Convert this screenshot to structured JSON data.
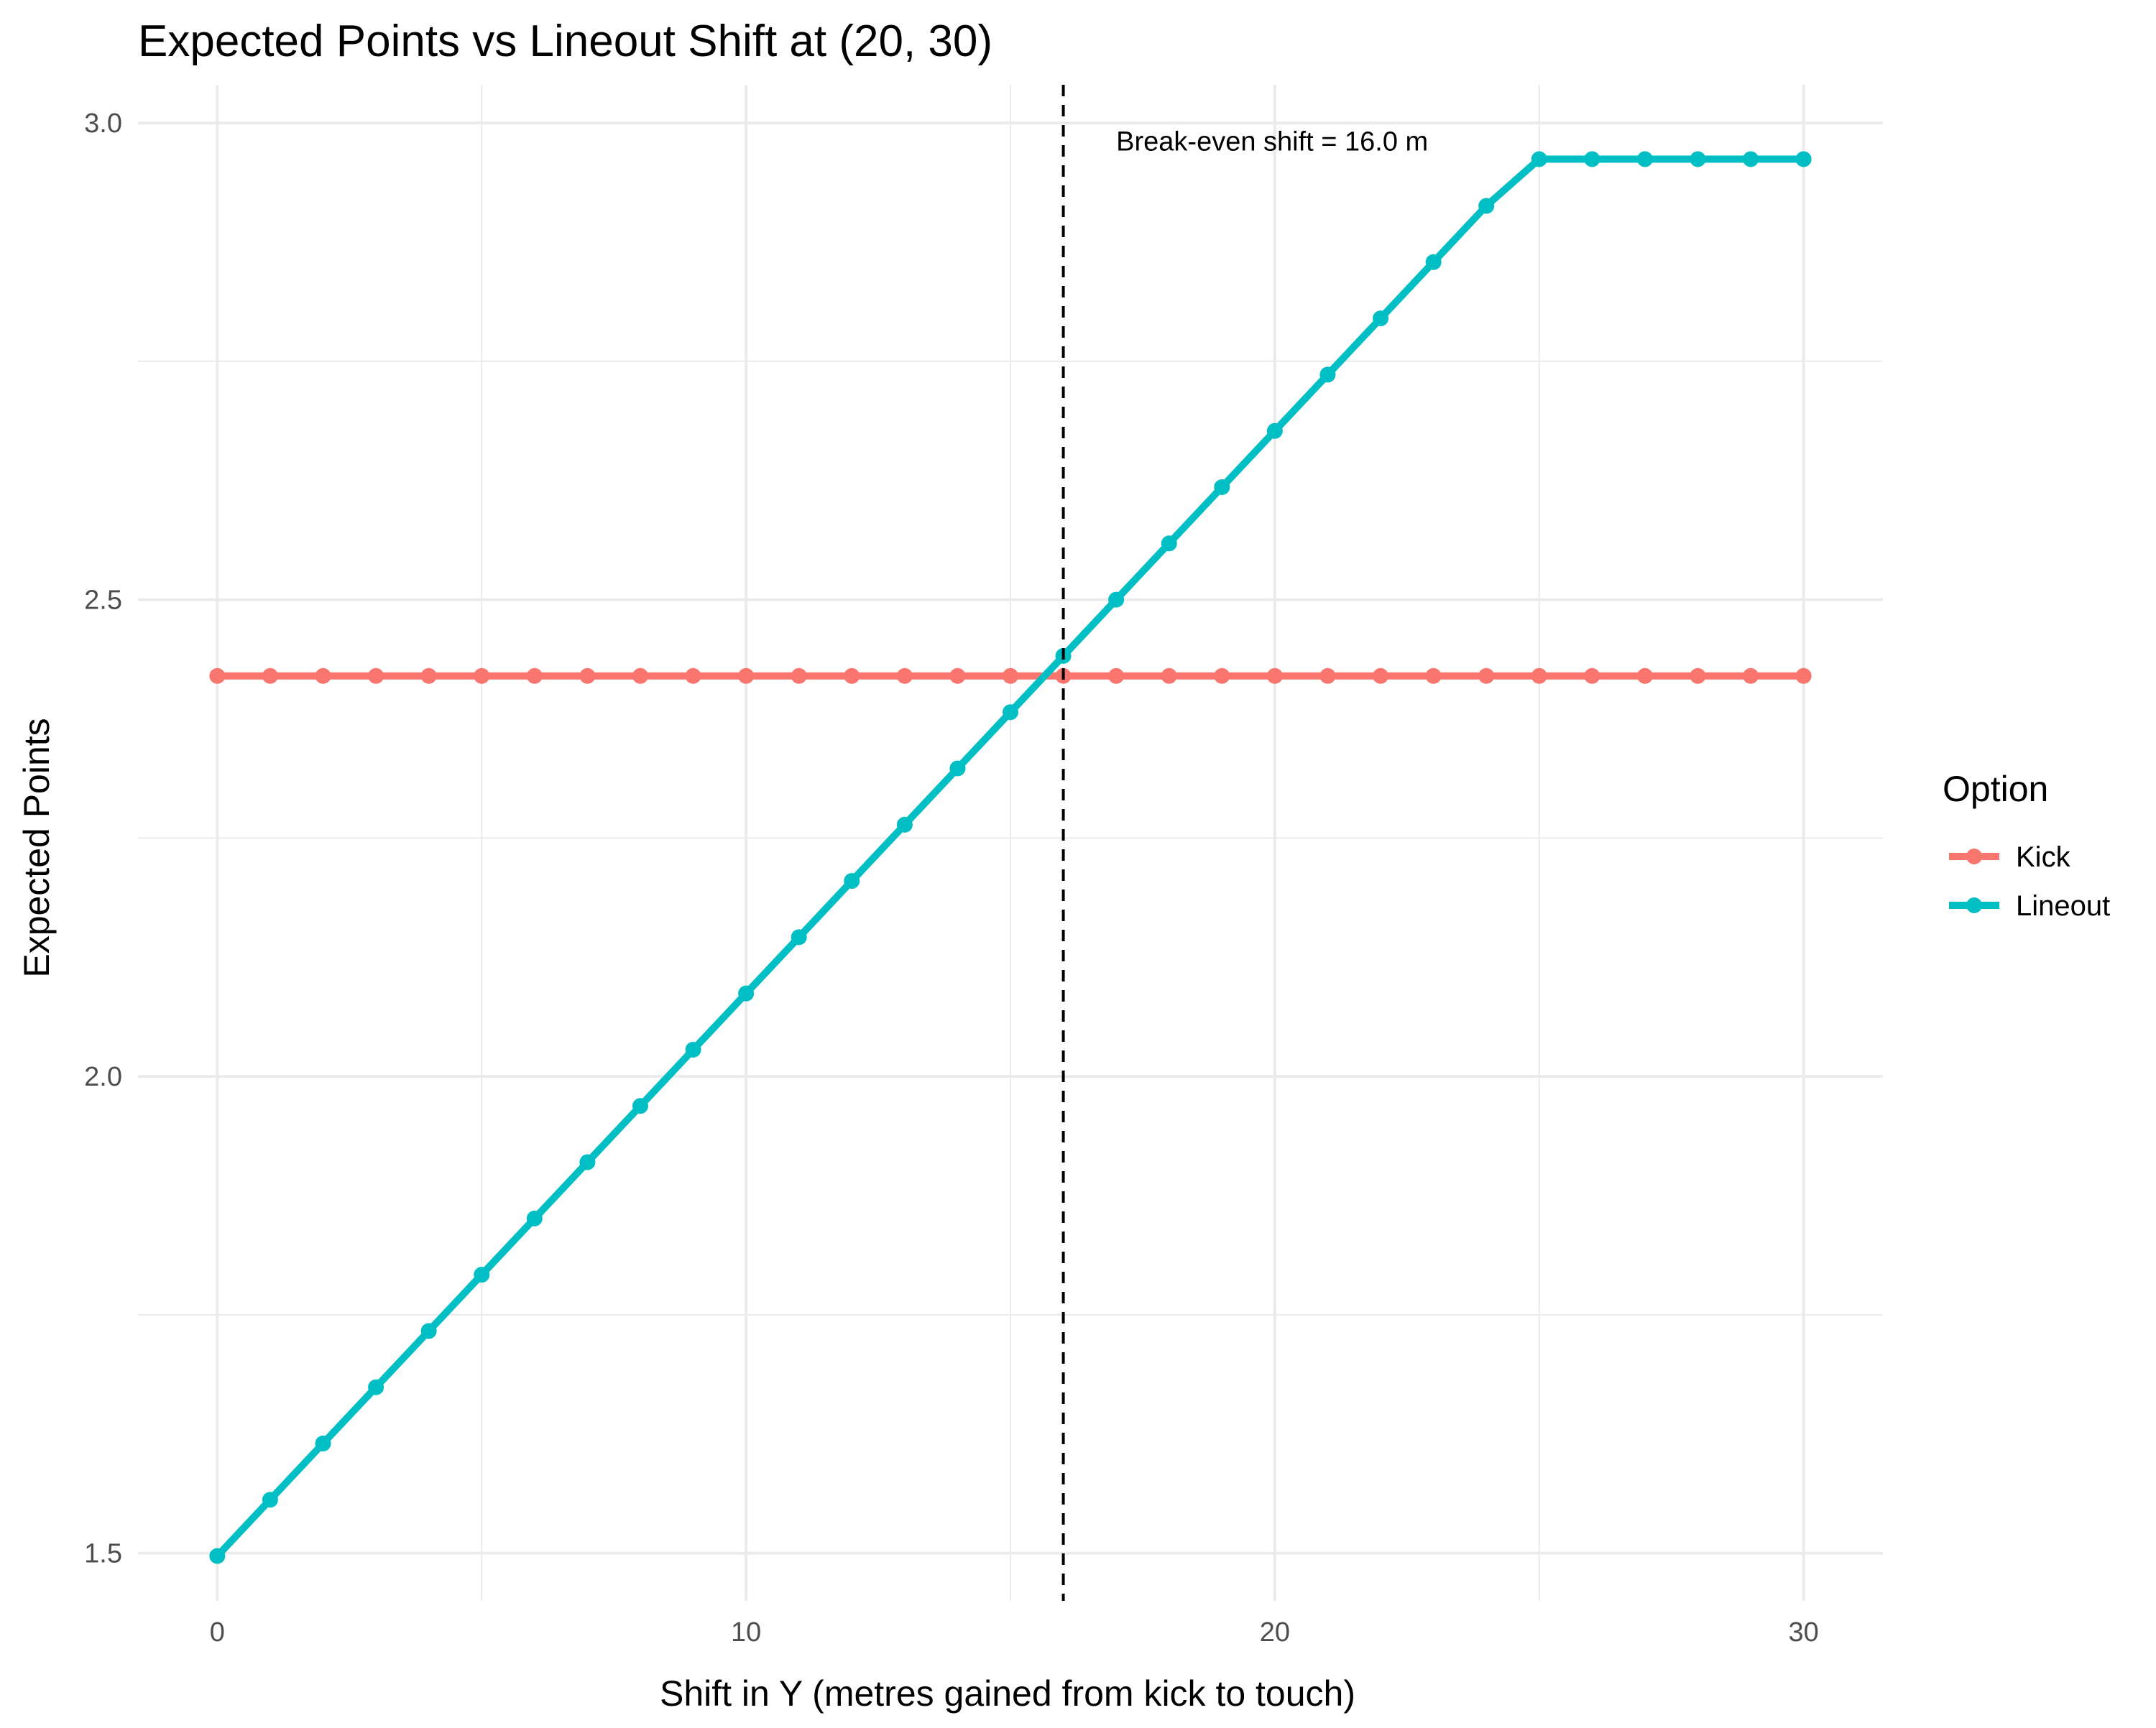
{
  "chart_data": {
    "type": "line",
    "title": "Expected Points vs Lineout Shift at (20, 30)",
    "xlabel": "Shift in Y (metres gained from kick to touch)",
    "ylabel": "Expected Points",
    "xlim": [
      -1.5,
      31.5
    ],
    "ylim": [
      1.45,
      3.04
    ],
    "x_ticks": [
      0,
      10,
      20,
      30
    ],
    "x_minor_ticks": [
      5,
      15,
      25
    ],
    "y_ticks": [
      1.5,
      2.0,
      2.5,
      3.0
    ],
    "y_tick_labels": [
      "1.5",
      "2.0",
      "2.5",
      "3.0"
    ],
    "y_minor_ticks": [
      1.75,
      2.25,
      2.75
    ],
    "grid": true,
    "legend": {
      "title": "Option",
      "position": "right"
    },
    "x": [
      0,
      1,
      2,
      3,
      4,
      5,
      6,
      7,
      8,
      9,
      10,
      11,
      12,
      13,
      14,
      15,
      16,
      17,
      18,
      19,
      20,
      21,
      22,
      23,
      24,
      25,
      26,
      27,
      28,
      29,
      30
    ],
    "series": [
      {
        "name": "Kick",
        "color": "#f8766d",
        "values": [
          2.42,
          2.42,
          2.42,
          2.42,
          2.42,
          2.42,
          2.42,
          2.42,
          2.42,
          2.42,
          2.42,
          2.42,
          2.42,
          2.42,
          2.42,
          2.42,
          2.42,
          2.42,
          2.42,
          2.42,
          2.42,
          2.42,
          2.42,
          2.42,
          2.42,
          2.42,
          2.42,
          2.42,
          2.42,
          2.42,
          2.42
        ]
      },
      {
        "name": "Lineout",
        "color": "#00bfc4",
        "values": [
          1.497,
          1.556,
          1.615,
          1.674,
          1.733,
          1.792,
          1.851,
          1.91,
          1.969,
          2.028,
          2.087,
          2.146,
          2.205,
          2.264,
          2.323,
          2.382,
          2.441,
          2.5,
          2.559,
          2.618,
          2.677,
          2.736,
          2.795,
          2.854,
          2.913,
          2.962,
          2.962,
          2.962,
          2.962,
          2.962,
          2.962
        ]
      }
    ],
    "reference_line": {
      "x": 16.0,
      "style": "dashed",
      "color": "#000000"
    },
    "annotation": {
      "text": "Break-even shift = 16.0 m",
      "x": 17.0,
      "y": 2.98
    }
  }
}
